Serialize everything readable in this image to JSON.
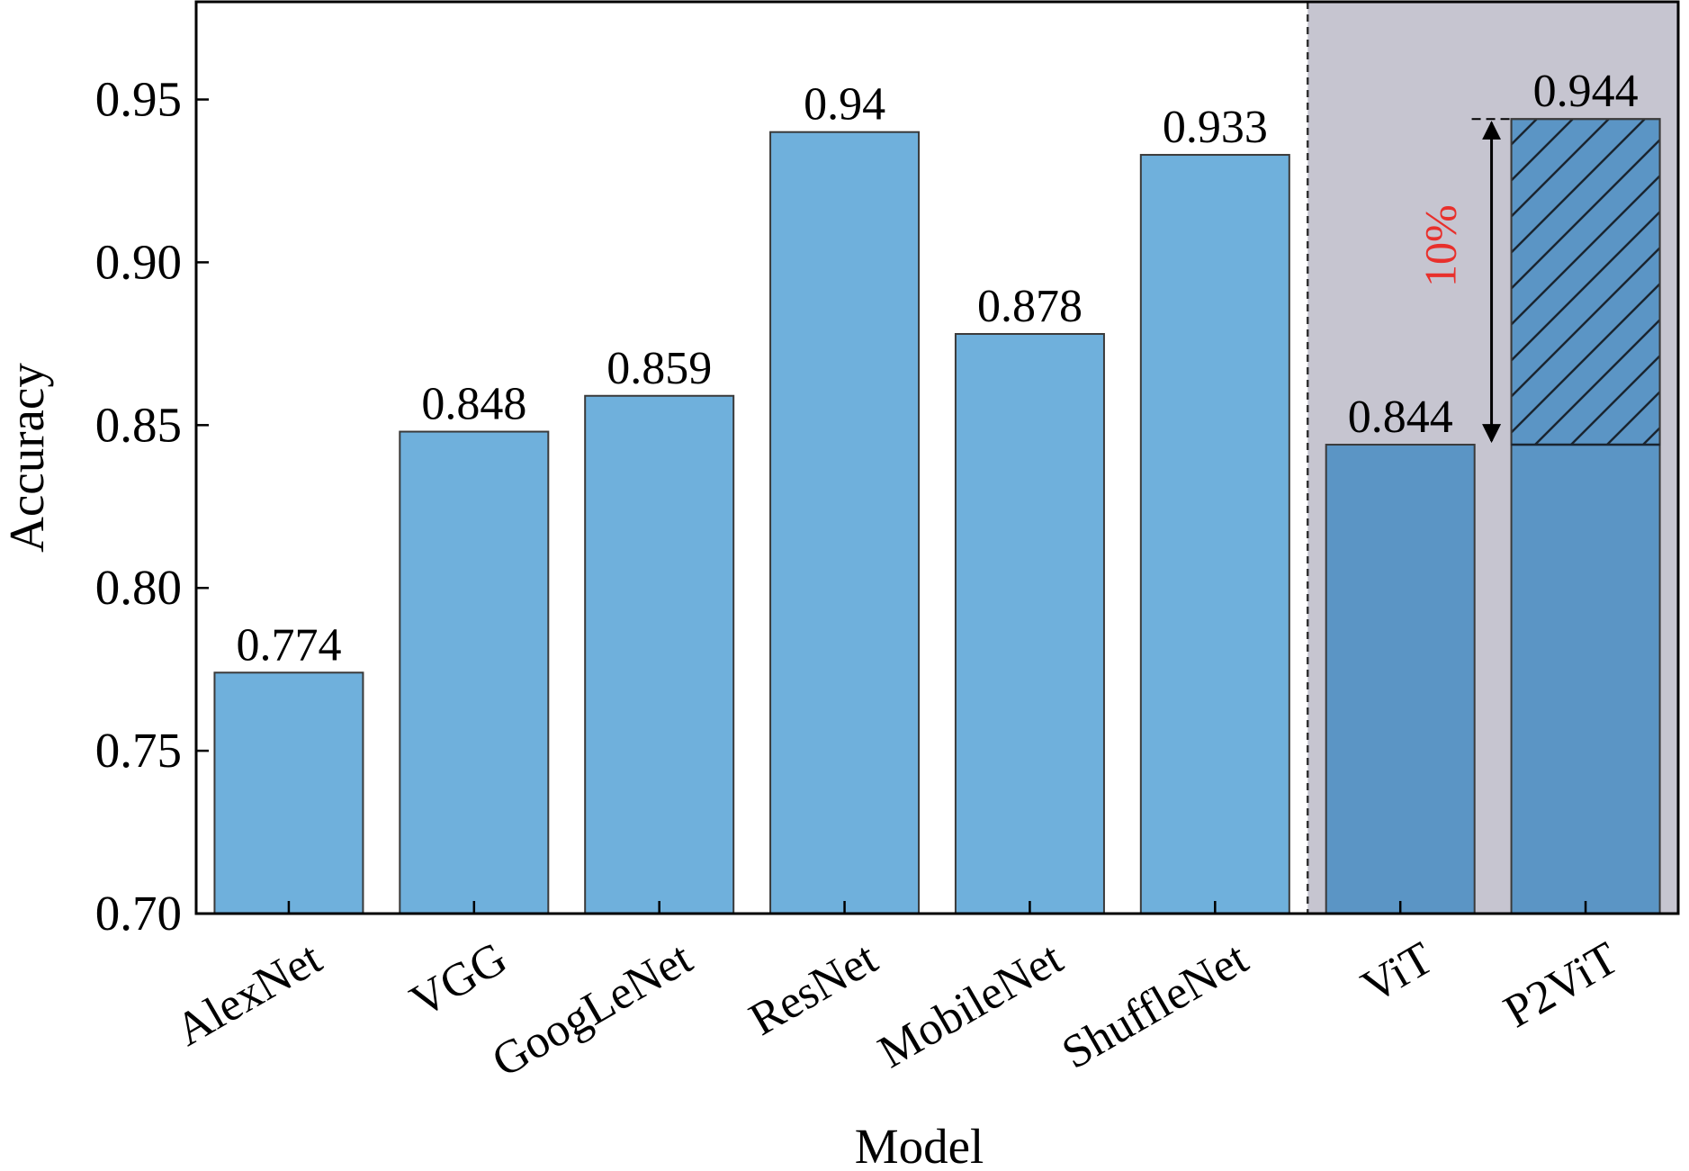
{
  "chart_data": {
    "type": "bar",
    "xlabel": "Model",
    "ylabel": "Accuracy",
    "ylim": [
      0.7,
      0.98
    ],
    "yticks": [
      "0.70",
      "0.75",
      "0.80",
      "0.85",
      "0.90",
      "0.95"
    ],
    "categories": [
      "AlexNet",
      "VGG",
      "GoogLeNet",
      "ResNet",
      "MobileNet",
      "ShuffleNet",
      "ViT",
      "P2ViT"
    ],
    "values": [
      0.774,
      0.848,
      0.859,
      0.94,
      0.878,
      0.933,
      0.844,
      0.944
    ],
    "data_labels": [
      "0.774",
      "0.848",
      "0.859",
      "0.94",
      "0.878",
      "0.933",
      "0.844",
      "0.944"
    ],
    "highlighted_region_categories": [
      "ViT",
      "P2ViT"
    ],
    "annotation": {
      "text": "10%",
      "from": 0.844,
      "to": 0.944,
      "color": "#e8302c"
    },
    "colors": {
      "bar": "#6fb0dc",
      "bar_highlight": "#5b95c5",
      "region_bg": "#c6c5d0",
      "bar_edge": "#3a3a3a"
    },
    "grid": false
  }
}
